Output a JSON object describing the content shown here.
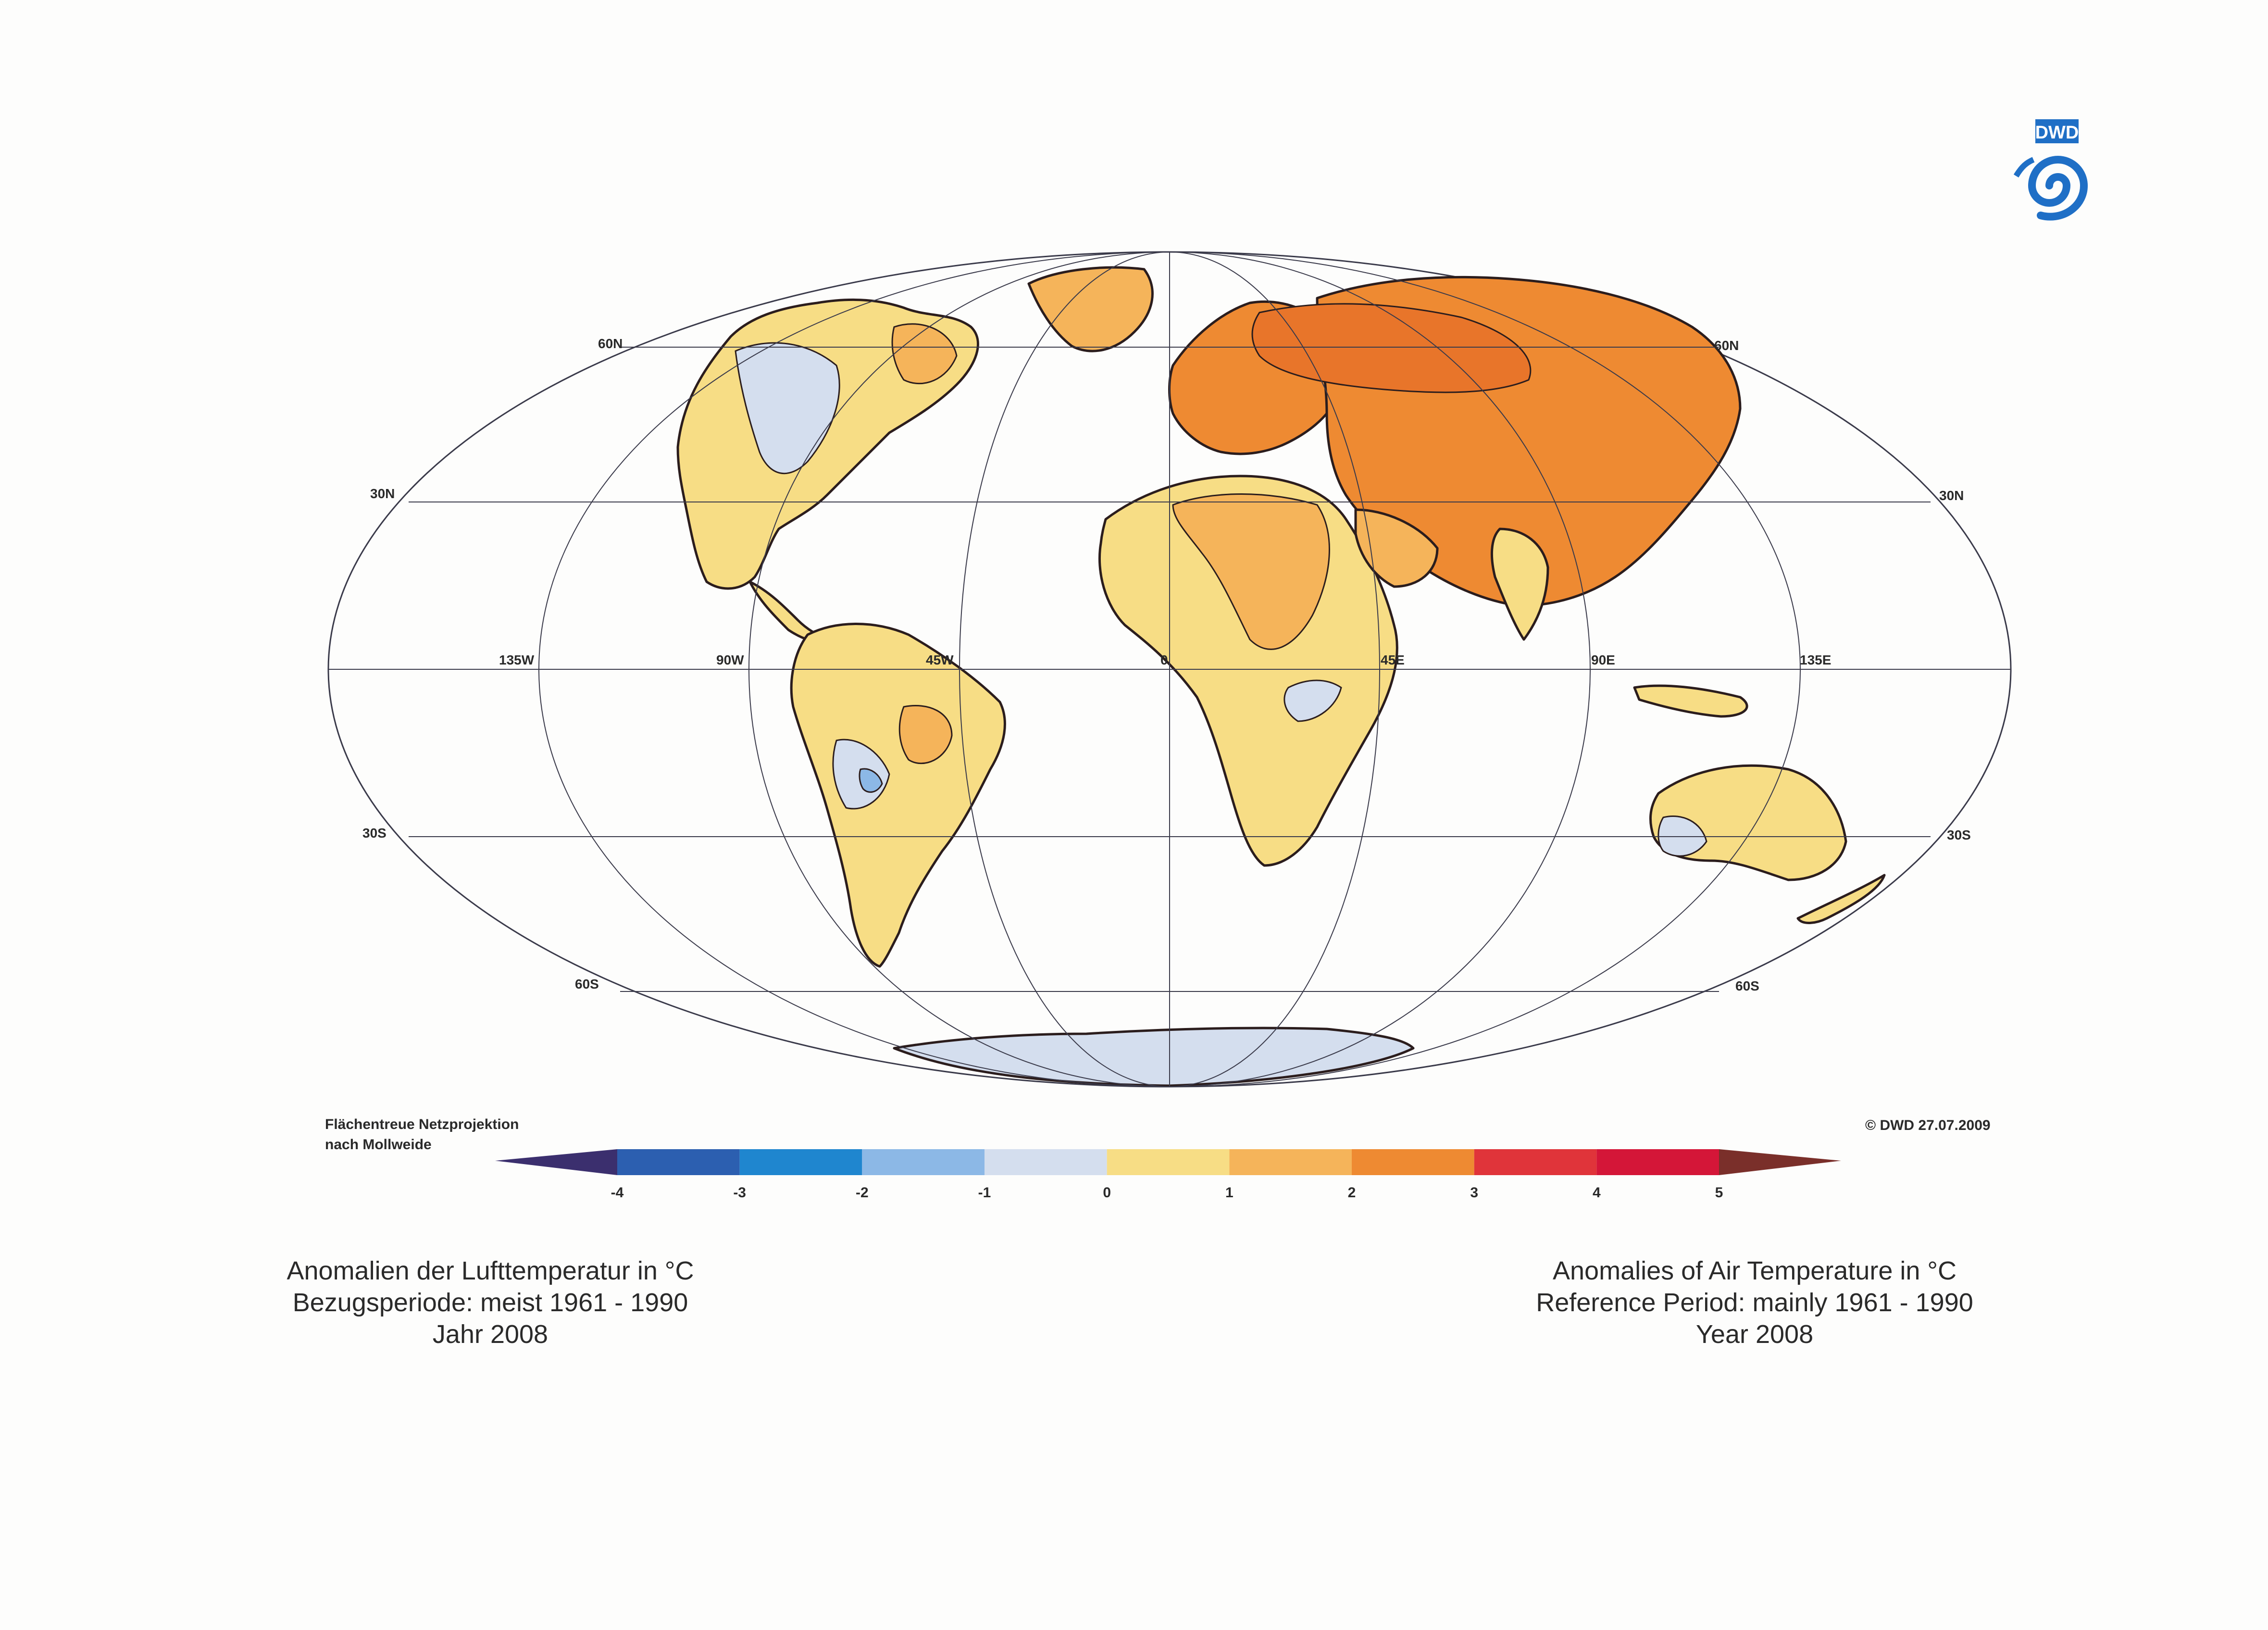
{
  "map": {
    "projection_note": [
      "Flächentreue Netzprojektion",
      "nach Mollweide"
    ],
    "latitude_labels": [
      "60N",
      "30N",
      "30S",
      "60S"
    ],
    "longitude_labels": [
      "135W",
      "90W",
      "45W",
      "0",
      "45E",
      "90E",
      "135E"
    ],
    "copyright": "© DWD 27.07.2009"
  },
  "legend": {
    "ticks": [
      "-4",
      "-3",
      "-2",
      "-1",
      "0",
      "1",
      "2",
      "3",
      "4",
      "5"
    ],
    "low_extension_color": "#3b2f6e",
    "high_extension_color": "#7a2f2a",
    "bins": [
      {
        "range": "-4 to -3",
        "color": "#2c5fb0"
      },
      {
        "range": "-3 to -2",
        "color": "#1f86cf"
      },
      {
        "range": "-2 to -1",
        "color": "#8cb8e6"
      },
      {
        "range": "-1 to 0",
        "color": "#d4deee"
      },
      {
        "range": "0 to 1",
        "color": "#f7dd85"
      },
      {
        "range": "1 to 2",
        "color": "#f5b45a"
      },
      {
        "range": "2 to 3",
        "color": "#ee8a32"
      },
      {
        "range": "3 to 4",
        "color": "#e0343a"
      },
      {
        "range": "4 to 5",
        "color": "#d41638"
      }
    ]
  },
  "caption_de": {
    "line1": "Anomalien der Lufttemperatur in °C",
    "line2": "Bezugsperiode: meist 1961 - 1990",
    "line3": "Jahr 2008"
  },
  "caption_en": {
    "line1": "Anomalies of Air Temperature in °C",
    "line2": "Reference Period: mainly 1961 - 1990",
    "line3": "Year 2008"
  },
  "logo": {
    "text": "DWD",
    "color": "#1f6fc6"
  },
  "colors": {
    "land_base": "#f7dd85",
    "land_warm": "#f5b45a",
    "land_hot": "#ee8a32",
    "land_cool": "#d4deee",
    "land_cold": "#8cb8e6",
    "grid": "#3a3a4a",
    "coast": "#2b1d1d"
  }
}
